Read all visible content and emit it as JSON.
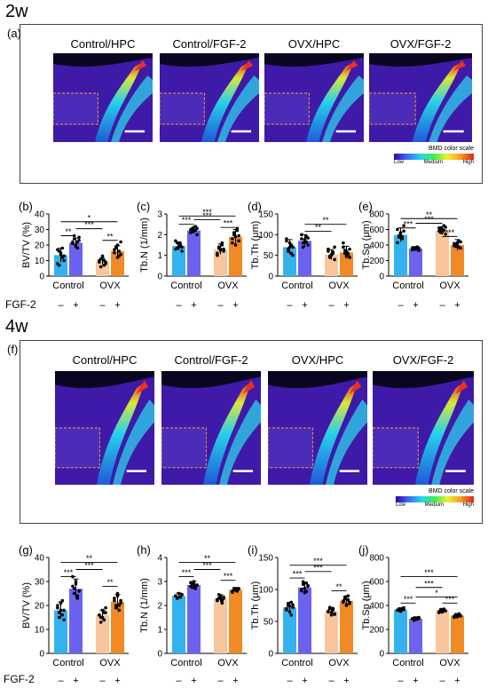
{
  "sections": [
    {
      "heading": "2w",
      "images": {
        "label": "(a)",
        "titles": [
          "Control/HPC",
          "Control/FGF-2",
          "OVX/HPC",
          "OVX/FGF-2"
        ],
        "scale_title": "BMD color scale",
        "scale_labels": [
          "Low",
          "Medium",
          "High"
        ]
      },
      "factor_label": "FGF-2",
      "signs": [
        "–",
        "+",
        "–",
        "+"
      ],
      "charts": [
        {
          "label": "(b)",
          "ylabel": "BV/TV (%)",
          "yticks": [
            0,
            10,
            20,
            30,
            40
          ],
          "ylim": [
            0,
            40
          ],
          "values": [
            13.5,
            21.5,
            9.5,
            16
          ],
          "errors": [
            4.5,
            3,
            2,
            3.5
          ],
          "pts": [
            [
              17,
              16,
              15,
              12,
              10,
              8,
              7,
              14,
              18,
              13
            ],
            [
              22,
              24,
              20,
              18,
              23,
              21,
              26,
              19,
              22,
              25
            ],
            [
              9,
              11,
              12,
              7,
              8,
              10,
              6,
              13,
              10,
              9
            ],
            [
              15,
              18,
              20,
              13,
              14,
              17,
              19,
              12,
              16,
              22
            ]
          ],
          "sig": [
            {
              "a": 0,
              "b": 1,
              "y": 26,
              "t": "**"
            },
            {
              "a": 1,
              "b": 2,
              "y": 30.5,
              "t": "***"
            },
            {
              "a": 0,
              "b": 3,
              "y": 35,
              "t": "*"
            },
            {
              "a": 2,
              "b": 3,
              "y": 23,
              "t": "**"
            }
          ]
        },
        {
          "label": "(c)",
          "ylabel": "Tb.N (1/mm)",
          "yticks": [
            0,
            1,
            2,
            3
          ],
          "ylim": [
            0,
            3
          ],
          "values": [
            1.45,
            2.2,
            1.3,
            1.9
          ],
          "errors": [
            0.2,
            0.15,
            0.25,
            0.35
          ],
          "pts": [
            [
              1.3,
              1.6,
              1.4,
              1.5,
              1.2,
              1.7,
              1.35,
              1.45,
              1.55,
              1.4
            ],
            [
              2.1,
              2.3,
              2.2,
              2.4,
              2.0,
              2.25,
              2.15,
              2.35,
              2.2,
              2.3
            ],
            [
              1.1,
              1.4,
              1.3,
              1.5,
              1.2,
              1.0,
              1.35,
              1.25,
              1.6,
              1.3
            ],
            [
              1.6,
              2.0,
              1.9,
              2.3,
              1.7,
              1.8,
              2.1,
              1.5,
              2.2,
              1.95
            ]
          ],
          "sig": [
            {
              "a": 0,
              "b": 1,
              "y": 2.5,
              "t": "***"
            },
            {
              "a": 1,
              "b": 2,
              "y": 2.72,
              "t": "***"
            },
            {
              "a": 0,
              "b": 3,
              "y": 2.9,
              "t": "***"
            },
            {
              "a": 2,
              "b": 3,
              "y": 2.35,
              "t": "***"
            }
          ]
        },
        {
          "label": "(d)",
          "ylabel": "Tb.Th (μm)",
          "yticks": [
            0,
            50,
            100,
            150
          ],
          "ylim": [
            0,
            150
          ],
          "values": [
            70,
            85,
            52,
            57
          ],
          "errors": [
            18,
            15,
            12,
            15
          ],
          "pts": [
            [
              85,
              60,
              70,
              75,
              50,
              90,
              65,
              80,
              55,
              70
            ],
            [
              90,
              80,
              85,
              95,
              75,
              100,
              70,
              88,
              82,
              92
            ],
            [
              60,
              45,
              50,
              55,
              40,
              65,
              48,
              52,
              58,
              70
            ],
            [
              70,
              55,
              60,
              50,
              45,
              80,
              62,
              48,
              55,
              65
            ]
          ],
          "sig": [
            {
              "a": 1,
              "b": 2,
              "y": 108,
              "t": "**"
            },
            {
              "a": 1,
              "b": 3,
              "y": 125,
              "t": "**"
            }
          ]
        },
        {
          "label": "(e)",
          "ylabel": "Tb.Sp (μm)",
          "yticks": [
            0,
            200,
            400,
            600,
            800
          ],
          "ylim": [
            0,
            800
          ],
          "values": [
            530,
            355,
            585,
            400
          ],
          "errors": [
            90,
            25,
            50,
            70
          ],
          "pts": [
            [
              600,
              520,
              550,
              480,
              650,
              430,
              500,
              560,
              510,
              580
            ],
            [
              340,
              360,
              350,
              370,
              330,
              365,
              355,
              345,
              375,
              360
            ],
            [
              620,
              560,
              600,
              650,
              540,
              580,
              610,
              570,
              590,
              630
            ],
            [
              420,
              380,
              400,
              450,
              360,
              390,
              410,
              430,
              370,
              440
            ]
          ],
          "sig": [
            {
              "a": 0,
              "b": 1,
              "y": 620,
              "t": "***"
            },
            {
              "a": 0,
              "b": 3,
              "y": 740,
              "t": "**"
            },
            {
              "a": 1,
              "b": 2,
              "y": 680,
              "t": "***"
            },
            {
              "a": 2,
              "b": 3,
              "y": 510,
              "t": "***"
            }
          ]
        }
      ]
    },
    {
      "heading": "4w",
      "images": {
        "label": "(f)",
        "titles": [
          "Control/HPC",
          "Control/FGF-2",
          "OVX/HPC",
          "OVX/FGF-2"
        ],
        "scale_title": "BMD color scale",
        "scale_labels": [
          "Low",
          "Medium",
          "High"
        ]
      },
      "factor_label": "FGF-2",
      "signs": [
        "–",
        "+",
        "–",
        "+"
      ],
      "charts": [
        {
          "label": "(g)",
          "ylabel": "BV/TV (%)",
          "yticks": [
            0,
            10,
            20,
            30,
            40
          ],
          "ylim": [
            0,
            40
          ],
          "values": [
            18,
            27,
            16,
            21.5
          ],
          "errors": [
            3.5,
            4,
            2,
            3
          ],
          "pts": [
            [
              20,
              15,
              18,
              22,
              14,
              19,
              17,
              21,
              16,
              18
            ],
            [
              28,
              25,
              30,
              24,
              26,
              32,
              27,
              29,
              23,
              26
            ],
            [
              16,
              15,
              18,
              14,
              17,
              16,
              13,
              15,
              17,
              19
            ],
            [
              22,
              20,
              25,
              18,
              21,
              23,
              19,
              24,
              20,
              22
            ]
          ],
          "sig": [
            {
              "a": 0,
              "b": 1,
              "y": 32,
              "t": "***"
            },
            {
              "a": 1,
              "b": 2,
              "y": 35,
              "t": "***"
            },
            {
              "a": 0,
              "b": 3,
              "y": 38,
              "t": "**"
            },
            {
              "a": 2,
              "b": 3,
              "y": 28,
              "t": "**"
            }
          ]
        },
        {
          "label": "(h)",
          "ylabel": "Tb.N (1/mm)",
          "yticks": [
            0,
            1,
            2,
            3,
            4
          ],
          "ylim": [
            0,
            4
          ],
          "values": [
            2.4,
            2.85,
            2.3,
            2.65
          ],
          "errors": [
            0.12,
            0.15,
            0.15,
            0.1
          ],
          "pts": [
            [
              2.4,
              2.3,
              2.5,
              2.35,
              2.45,
              2.4,
              2.3,
              2.5,
              2.35,
              2.45
            ],
            [
              2.8,
              2.9,
              3.0,
              2.7,
              2.85,
              2.95,
              2.75,
              2.9,
              2.8,
              2.85
            ],
            [
              2.2,
              2.3,
              2.4,
              2.1,
              2.35,
              2.25,
              2.45,
              2.3,
              2.2,
              2.3
            ],
            [
              2.6,
              2.7,
              2.65,
              2.6,
              2.7,
              2.55,
              2.65,
              2.7,
              2.6,
              2.7
            ]
          ],
          "sig": [
            {
              "a": 0,
              "b": 1,
              "y": 3.2,
              "t": "***"
            },
            {
              "a": 1,
              "b": 2,
              "y": 3.5,
              "t": "***"
            },
            {
              "a": 0,
              "b": 3,
              "y": 3.8,
              "t": "**"
            },
            {
              "a": 2,
              "b": 3,
              "y": 3.05,
              "t": "***"
            }
          ]
        },
        {
          "label": "(i)",
          "ylabel": "Tb.Th (μm)",
          "yticks": [
            0,
            50,
            100,
            150
          ],
          "ylim": [
            0,
            150
          ],
          "values": [
            72,
            103,
            66,
            82
          ],
          "errors": [
            8,
            8,
            6,
            8
          ],
          "pts": [
            [
              70,
              75,
              65,
              80,
              72,
              68,
              78,
              74,
              60,
              76
            ],
            [
              100,
              108,
              95,
              110,
              105,
              98,
              112,
              102,
              97,
              106
            ],
            [
              65,
              70,
              60,
              68,
              62,
              66,
              72,
              64,
              70,
              61
            ],
            [
              80,
              85,
              75,
              90,
              78,
              82,
              88,
              76,
              84,
              80
            ]
          ],
          "sig": [
            {
              "a": 0,
              "b": 1,
              "y": 118,
              "t": "***"
            },
            {
              "a": 1,
              "b": 2,
              "y": 128,
              "t": "***"
            },
            {
              "a": 0,
              "b": 3,
              "y": 138,
              "t": "***"
            },
            {
              "a": 2,
              "b": 3,
              "y": 98,
              "t": "**"
            }
          ]
        },
        {
          "label": "(j)",
          "ylabel": "Tb.Sp (μm)",
          "yticks": [
            0,
            200,
            400,
            600,
            800
          ],
          "ylim": [
            0,
            800
          ],
          "values": [
            365,
            290,
            355,
            315
          ],
          "errors": [
            15,
            15,
            20,
            15
          ],
          "pts": [
            [
              360,
              370,
              355,
              375,
              365,
              360,
              370,
              350,
              365,
              380
            ],
            [
              290,
              280,
              295,
              285,
              300,
              290,
              275,
              295,
              288,
              292
            ],
            [
              350,
              360,
              345,
              370,
              355,
              340,
              365,
              350,
              360,
              355
            ],
            [
              310,
              320,
              305,
              330,
              315,
              300,
              325,
              310,
              318,
              312
            ]
          ],
          "sig": [
            {
              "a": 0,
              "b": 1,
              "y": 420,
              "t": "***"
            },
            {
              "a": 0,
              "b": 3,
              "y": 640,
              "t": "***"
            },
            {
              "a": 1,
              "b": 2,
              "y": 550,
              "t": "***"
            },
            {
              "a": 1,
              "b": 3,
              "y": 470,
              "t": "*"
            },
            {
              "a": 2,
              "b": 3,
              "y": 420,
              "t": "***"
            }
          ]
        }
      ]
    }
  ],
  "group_labels": [
    "Control",
    "OVX"
  ],
  "colors": {
    "c_hpc": "#34b2ee",
    "c_fgf": "#6b63f0",
    "o_hpc": "#f8c59c",
    "o_fgf": "#f18a24"
  },
  "chart_data": [
    {
      "type": "bar",
      "title": "(b)",
      "ylabel": "BV/TV (%)",
      "categories": [
        "Control/HPC",
        "Control/FGF-2",
        "OVX/HPC",
        "OVX/FGF-2"
      ],
      "values": [
        13.5,
        21.5,
        9.5,
        16
      ],
      "ylim": [
        0,
        40
      ]
    },
    {
      "type": "bar",
      "title": "(c)",
      "ylabel": "Tb.N (1/mm)",
      "categories": [
        "Control/HPC",
        "Control/FGF-2",
        "OVX/HPC",
        "OVX/FGF-2"
      ],
      "values": [
        1.45,
        2.2,
        1.3,
        1.9
      ],
      "ylim": [
        0,
        3
      ]
    },
    {
      "type": "bar",
      "title": "(d)",
      "ylabel": "Tb.Th (μm)",
      "categories": [
        "Control/HPC",
        "Control/FGF-2",
        "OVX/HPC",
        "OVX/FGF-2"
      ],
      "values": [
        70,
        85,
        52,
        57
      ],
      "ylim": [
        0,
        150
      ]
    },
    {
      "type": "bar",
      "title": "(e)",
      "ylabel": "Tb.Sp (μm)",
      "categories": [
        "Control/HPC",
        "Control/FGF-2",
        "OVX/HPC",
        "OVX/FGF-2"
      ],
      "values": [
        530,
        355,
        585,
        400
      ],
      "ylim": [
        0,
        800
      ]
    },
    {
      "type": "bar",
      "title": "(g)",
      "ylabel": "BV/TV (%)",
      "categories": [
        "Control/HPC",
        "Control/FGF-2",
        "OVX/HPC",
        "OVX/FGF-2"
      ],
      "values": [
        18,
        27,
        16,
        21.5
      ],
      "ylim": [
        0,
        40
      ]
    },
    {
      "type": "bar",
      "title": "(h)",
      "ylabel": "Tb.N (1/mm)",
      "categories": [
        "Control/HPC",
        "Control/FGF-2",
        "OVX/HPC",
        "OVX/FGF-2"
      ],
      "values": [
        2.4,
        2.85,
        2.3,
        2.65
      ],
      "ylim": [
        0,
        4
      ]
    },
    {
      "type": "bar",
      "title": "(i)",
      "ylabel": "Tb.Th (μm)",
      "categories": [
        "Control/HPC",
        "Control/FGF-2",
        "OVX/HPC",
        "OVX/FGF-2"
      ],
      "values": [
        72,
        103,
        66,
        82
      ],
      "ylim": [
        0,
        150
      ]
    },
    {
      "type": "bar",
      "title": "(j)",
      "ylabel": "Tb.Sp (μm)",
      "categories": [
        "Control/HPC",
        "Control/FGF-2",
        "OVX/HPC",
        "OVX/FGF-2"
      ],
      "values": [
        365,
        290,
        355,
        315
      ],
      "ylim": [
        0,
        800
      ]
    }
  ]
}
